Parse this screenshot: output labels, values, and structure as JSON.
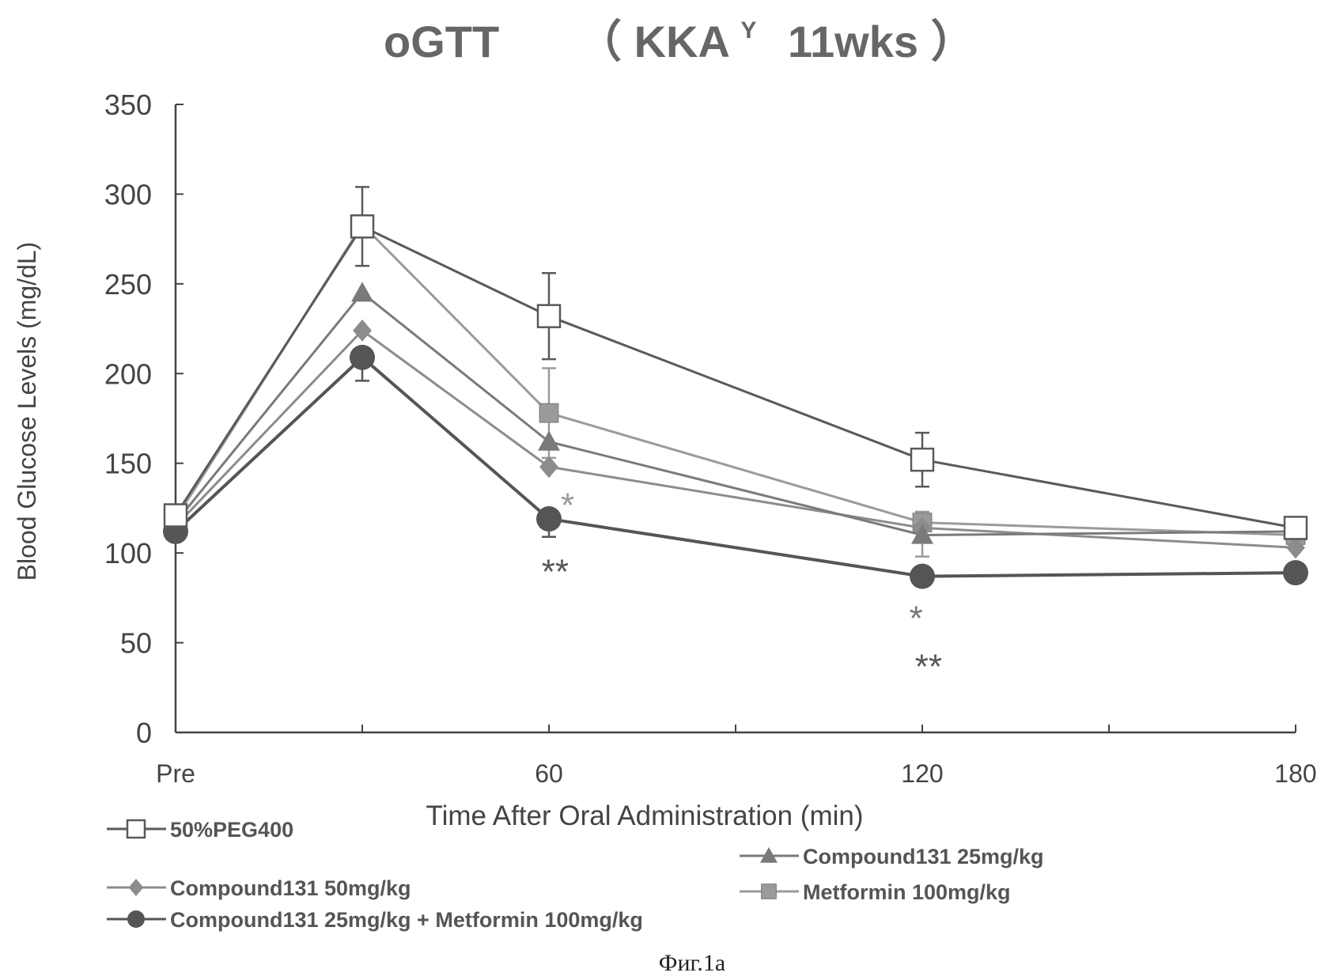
{
  "chart_data": {
    "type": "line",
    "title_main": "oGTT",
    "title_strain": "KKA",
    "title_superscript": "Y",
    "title_age": "11wks",
    "xlabel": "Time After Oral Administration (min)",
    "ylabel": "Blood Glucose Levels (mg/dL)",
    "x": [
      0,
      30,
      60,
      120,
      180
    ],
    "xlim": [
      0,
      180
    ],
    "x_tick_labels": [
      {
        "x": 0,
        "label": "Pre"
      },
      {
        "x": 60,
        "label": "60"
      },
      {
        "x": 120,
        "label": "120"
      },
      {
        "x": 180,
        "label": "180"
      }
    ],
    "x_minor_ticks": [
      30,
      90,
      150
    ],
    "ylim": [
      0,
      350
    ],
    "y_ticks": [
      0,
      50,
      100,
      150,
      200,
      250,
      300,
      350
    ],
    "series": [
      {
        "name": "50%PEG400",
        "marker": "square-open",
        "color": "#5a5a5a",
        "values": [
          121,
          282,
          232,
          152,
          114
        ],
        "error_upper": [
          null,
          304,
          256,
          167,
          null
        ],
        "error_lower": [
          null,
          260,
          208,
          137,
          null
        ]
      },
      {
        "name": "Compound131  25mg/kg",
        "marker": "triangle",
        "color": "#7a7a7a",
        "values": [
          117,
          245,
          162,
          110,
          112
        ]
      },
      {
        "name": "Compound131  50mg/kg",
        "marker": "diamond",
        "color": "#8c8c8c",
        "values": [
          115,
          224,
          148,
          114,
          103
        ]
      },
      {
        "name": "Metformin  100mg/kg",
        "marker": "square-filled",
        "color": "#9a9a9a",
        "values": [
          119,
          283,
          178,
          117,
          110
        ],
        "error_upper": [
          null,
          null,
          203,
          123,
          null
        ],
        "error_lower": [
          null,
          null,
          153,
          98,
          null
        ]
      },
      {
        "name": "Compound131 25mg/kg + Metformin 100mg/kg",
        "marker": "circle",
        "color": "#555555",
        "values": [
          112,
          209,
          119,
          87,
          89
        ],
        "error_upper": [
          null,
          null,
          null,
          null,
          null
        ],
        "error_lower": [
          null,
          196,
          109,
          null,
          null
        ]
      }
    ],
    "annotations": [
      {
        "text": "*",
        "x": 63,
        "y": 129,
        "color": "#999999"
      },
      {
        "text": "**",
        "x": 61,
        "y": 92,
        "color": "#555555"
      },
      {
        "text": "*",
        "x": 119,
        "y": 66,
        "color": "#777777"
      },
      {
        "text": "**",
        "x": 121,
        "y": 39,
        "color": "#555555"
      }
    ]
  },
  "caption": "Фиг.1а"
}
